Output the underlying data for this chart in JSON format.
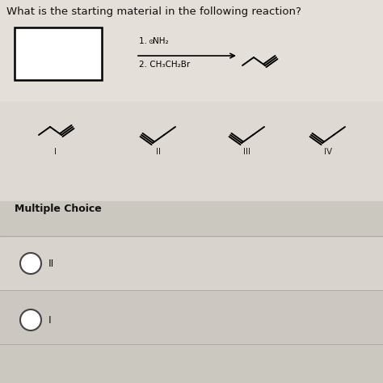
{
  "title": "What is the starting material in the following reaction?",
  "bg_top": "#dedad3",
  "bg_bottom": "#cbc8c0",
  "mc_stripe1": "#d5d1c9",
  "mc_stripe2": "#c8c4bc",
  "mc_title": "Multiple Choice",
  "reagent1": "1. ⊙NH₂",
  "reagent2": "2. CH₃CH₂Br",
  "labels": [
    "I",
    "II",
    "III",
    "IV"
  ],
  "choice_labels": [
    "II",
    "I"
  ],
  "title_fontsize": 9.5,
  "label_fontsize": 7.5
}
